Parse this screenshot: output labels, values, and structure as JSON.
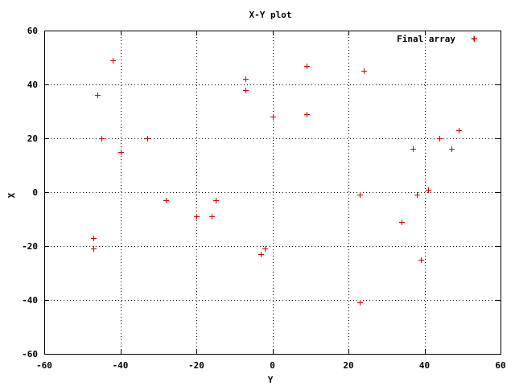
{
  "chart_data": {
    "type": "scatter",
    "title": "X-Y plot",
    "xlabel": "Y",
    "ylabel": "X",
    "xlim": [
      -60,
      60
    ],
    "ylim": [
      -60,
      60
    ],
    "xticks": [
      -60,
      -40,
      -20,
      0,
      20,
      40,
      60
    ],
    "yticks": [
      -60,
      -40,
      -20,
      0,
      20,
      40,
      60
    ],
    "grid": true,
    "legend_position": "top-right",
    "marker_color": "#cc0000",
    "series": [
      {
        "name": "Final array",
        "points": [
          [
            -42,
            49
          ],
          [
            -46,
            36
          ],
          [
            -45,
            20
          ],
          [
            -40,
            15
          ],
          [
            -33,
            20
          ],
          [
            -47,
            -17
          ],
          [
            -47,
            -21
          ],
          [
            -28,
            -3
          ],
          [
            -20,
            -9
          ],
          [
            -16,
            -9
          ],
          [
            -15,
            -3
          ],
          [
            -7,
            42
          ],
          [
            -7,
            38
          ],
          [
            0,
            28
          ],
          [
            9,
            47
          ],
          [
            9,
            29
          ],
          [
            -2,
            -21
          ],
          [
            -3,
            -23
          ],
          [
            24,
            45
          ],
          [
            23,
            -1
          ],
          [
            23,
            -41
          ],
          [
            34,
            -11
          ],
          [
            37,
            16
          ],
          [
            38,
            -1
          ],
          [
            39,
            -25
          ],
          [
            41,
            1
          ],
          [
            44,
            20
          ],
          [
            47,
            16
          ],
          [
            49,
            23
          ],
          [
            53,
            57
          ]
        ]
      }
    ]
  }
}
